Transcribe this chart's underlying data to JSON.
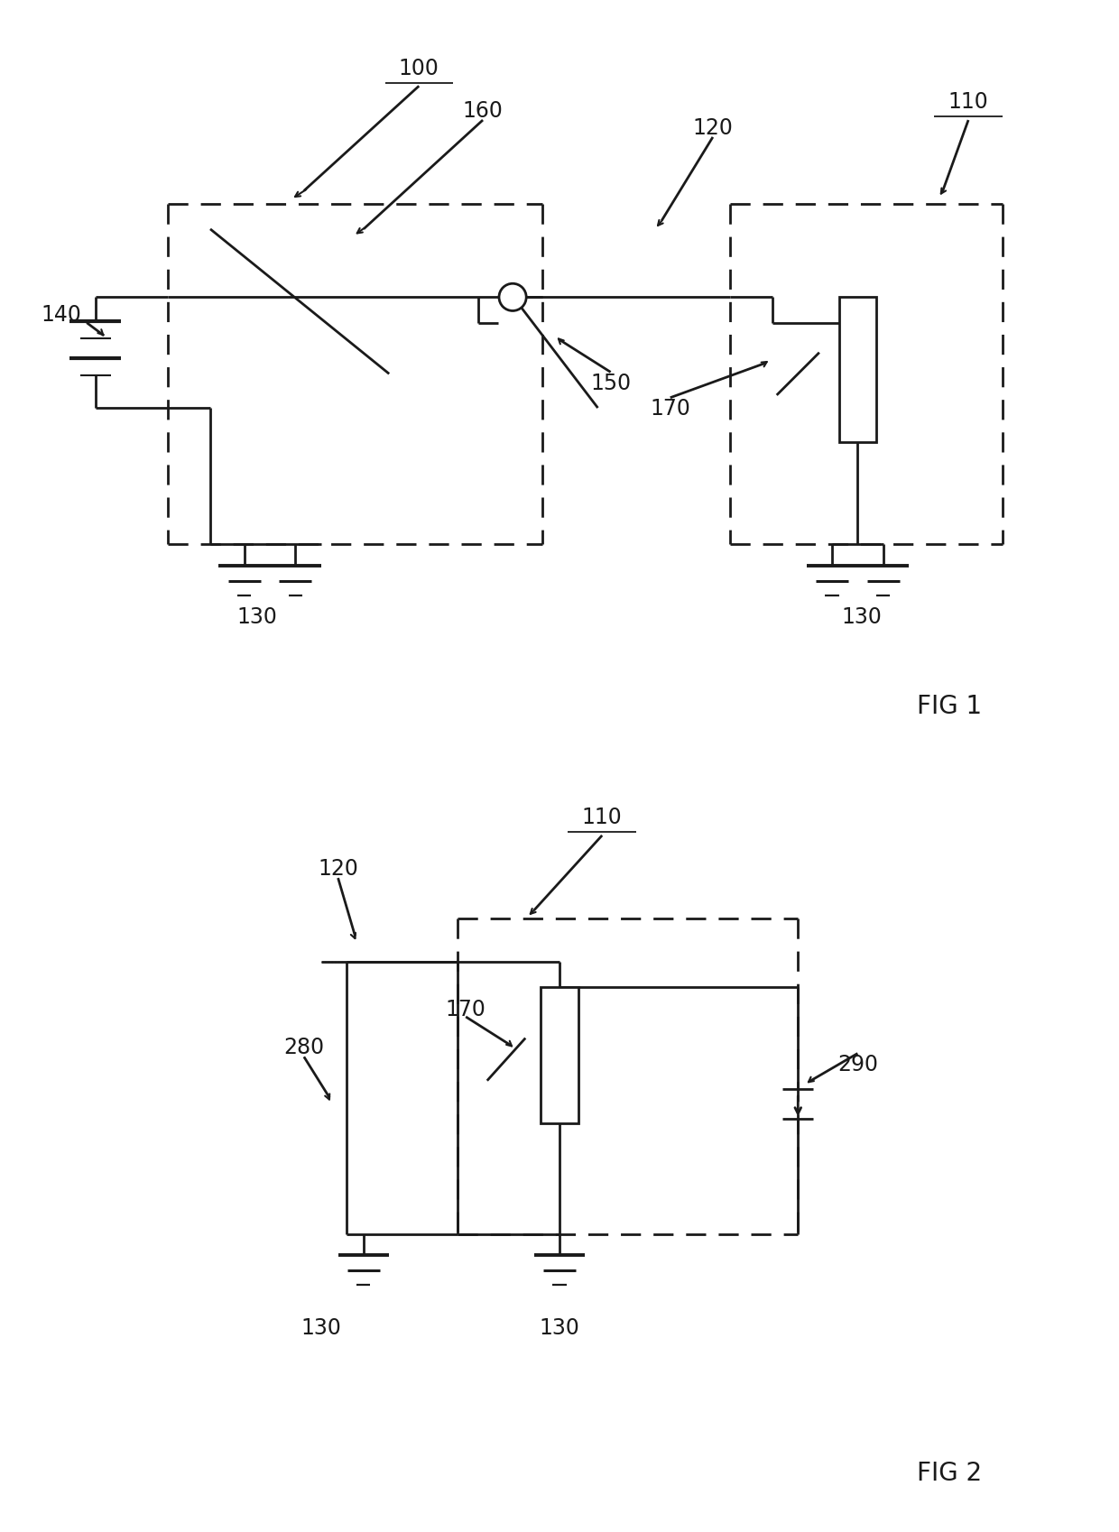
{
  "bg": "#ffffff",
  "lc": "#1a1a1a",
  "lw": 2.0,
  "dlw": 2.0,
  "dash": [
    8,
    5
  ],
  "fs": 17,
  "fig1_title": "FIG 1",
  "fig2_title": "FIG 2"
}
